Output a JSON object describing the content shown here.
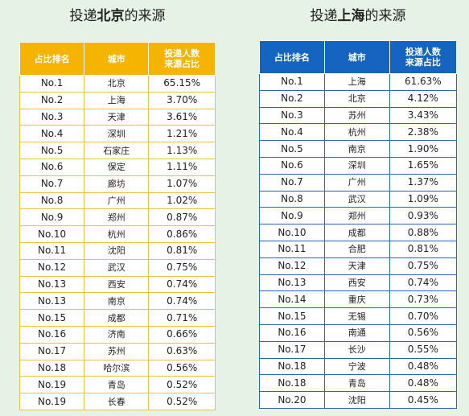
{
  "chart_data": [
    {
      "type": "table",
      "title_prefix": "投递",
      "title_bold": "北京",
      "title_suffix": "的来源",
      "columns": [
        "占比排名",
        "城市",
        "投递人数\n来源占比"
      ],
      "column_lines": [
        [
          "占比排名"
        ],
        [
          "城市"
        ],
        [
          "投递人数",
          "来源占比"
        ]
      ],
      "header_color": "#f4b400",
      "rows": [
        [
          "No.1",
          "北京",
          "65.15%"
        ],
        [
          "No.2",
          "上海",
          "3.70%"
        ],
        [
          "No.3",
          "天津",
          "3.61%"
        ],
        [
          "No.4",
          "深圳",
          "1.21%"
        ],
        [
          "No.5",
          "石家庄",
          "1.13%"
        ],
        [
          "No.6",
          "保定",
          "1.11%"
        ],
        [
          "No.7",
          "廊坊",
          "1.07%"
        ],
        [
          "No.8",
          "广州",
          "1.02%"
        ],
        [
          "No.9",
          "郑州",
          "0.87%"
        ],
        [
          "No.10",
          "杭州",
          "0.86%"
        ],
        [
          "No.11",
          "沈阳",
          "0.81%"
        ],
        [
          "No.12",
          "武汉",
          "0.75%"
        ],
        [
          "No.13",
          "西安",
          "0.74%"
        ],
        [
          "No.13",
          "南京",
          "0.74%"
        ],
        [
          "No.15",
          "成都",
          "0.71%"
        ],
        [
          "No.16",
          "济南",
          "0.66%"
        ],
        [
          "No.17",
          "苏州",
          "0.63%"
        ],
        [
          "No.18",
          "哈尔滨",
          "0.56%"
        ],
        [
          "No.19",
          "青岛",
          "0.52%"
        ],
        [
          "No.19",
          "长春",
          "0.52%"
        ]
      ]
    },
    {
      "type": "table",
      "title_prefix": "投递",
      "title_bold": "上海",
      "title_suffix": "的来源",
      "columns": [
        "占比排名",
        "城市",
        "投递人数\n来源占比"
      ],
      "column_lines": [
        [
          "占比排名"
        ],
        [
          "城市"
        ],
        [
          "投递人数",
          "来源占比"
        ]
      ],
      "header_color": "#1565c0",
      "rows": [
        [
          "No.1",
          "上海",
          "61.63%"
        ],
        [
          "No.2",
          "北京",
          "4.12%"
        ],
        [
          "No.3",
          "苏州",
          "3.43%"
        ],
        [
          "No.4",
          "杭州",
          "2.38%"
        ],
        [
          "No.5",
          "南京",
          "1.90%"
        ],
        [
          "No.6",
          "深圳",
          "1.65%"
        ],
        [
          "No.7",
          "广州",
          "1.37%"
        ],
        [
          "No.8",
          "武汉",
          "1.09%"
        ],
        [
          "No.9",
          "郑州",
          "0.93%"
        ],
        [
          "No.10",
          "成都",
          "0.88%"
        ],
        [
          "No.11",
          "合肥",
          "0.81%"
        ],
        [
          "No.12",
          "天津",
          "0.75%"
        ],
        [
          "No.13",
          "西安",
          "0.74%"
        ],
        [
          "No.14",
          "重庆",
          "0.73%"
        ],
        [
          "No.15",
          "无锡",
          "0.70%"
        ],
        [
          "No.16",
          "南通",
          "0.56%"
        ],
        [
          "No.17",
          "长沙",
          "0.55%"
        ],
        [
          "No.18",
          "宁波",
          "0.48%"
        ],
        [
          "No.18",
          "青岛",
          "0.48%"
        ],
        [
          "No.20",
          "沈阳",
          "0.45%"
        ]
      ]
    }
  ],
  "colors": {
    "background": "#e6f2e6",
    "beijing_accent": "#f4b400",
    "shanghai_accent": "#1565c0"
  }
}
